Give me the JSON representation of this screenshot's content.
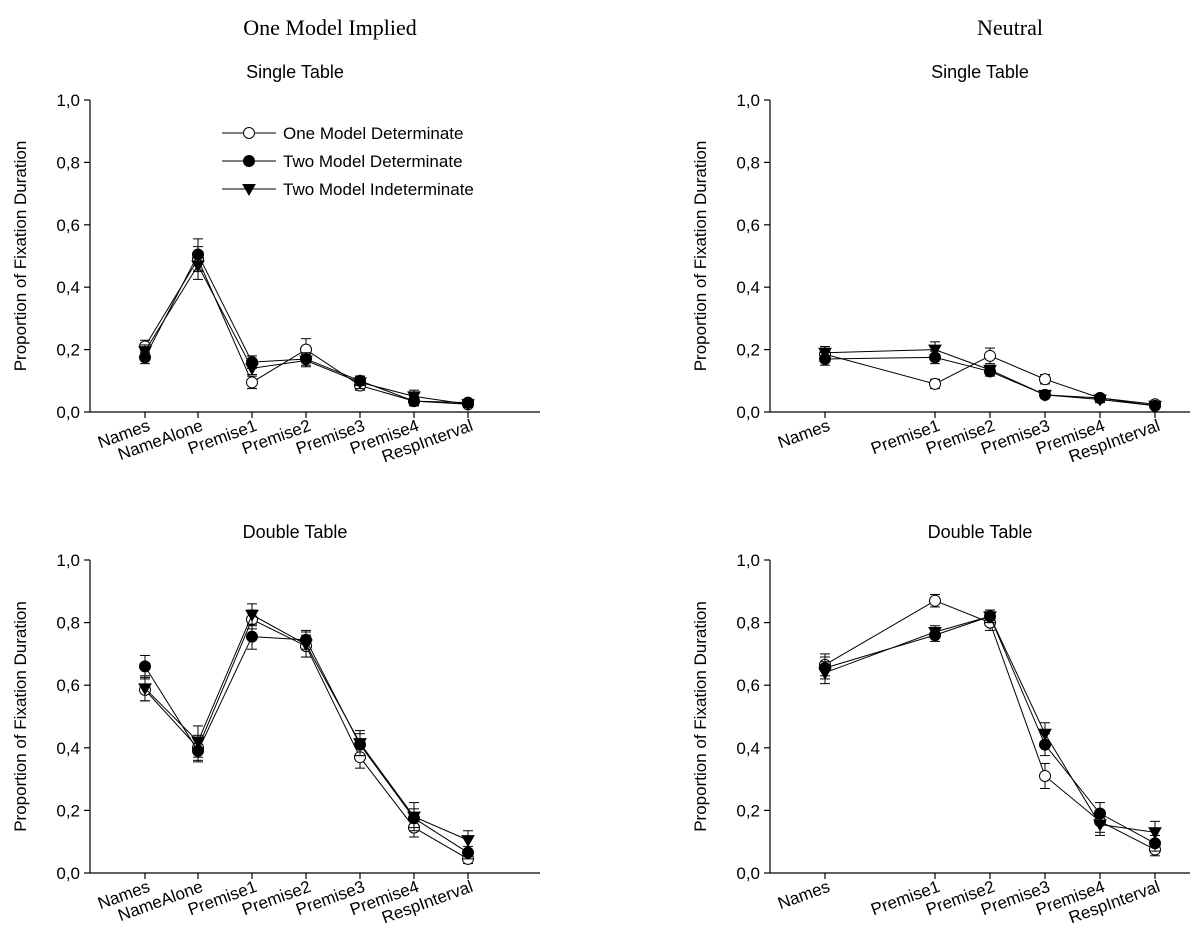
{
  "columns": [
    "One Model Implied",
    "Neutral"
  ],
  "legend": [
    {
      "name": "One Model Determinate",
      "marker": "circle-open"
    },
    {
      "name": "Two Model Determinate",
      "marker": "circle-filled"
    },
    {
      "name": "Two Model Indeterminate",
      "marker": "triangle-down-filled"
    }
  ],
  "chart_data": [
    {
      "type": "line",
      "column": "One Model Implied",
      "title": "Single Table",
      "ylabel": "Proportion of Fixation Duration",
      "ylim": [
        0,
        1
      ],
      "yticks": [
        "0,0",
        "0,2",
        "0,4",
        "0,6",
        "0,8",
        "1,0"
      ],
      "categories": [
        "Names",
        "NameAlone",
        "Premise1",
        "Premise2",
        "Premise3",
        "Premise4",
        "RespInterval"
      ],
      "legend_visible": true,
      "series": [
        {
          "name": "One Model Determinate",
          "values": [
            0.21,
            0.49,
            0.095,
            0.2,
            0.085,
            0.035,
            0.025
          ],
          "errors": [
            0.02,
            0.04,
            0.02,
            0.035,
            0.015,
            0.015,
            0.01
          ]
        },
        {
          "name": "Two Model Determinate",
          "values": [
            0.175,
            0.505,
            0.16,
            0.17,
            0.1,
            0.035,
            0.03
          ],
          "errors": [
            0.02,
            0.05,
            0.02,
            0.02,
            0.015,
            0.015,
            0.01
          ]
        },
        {
          "name": "Two Model Indeterminate",
          "values": [
            0.195,
            0.47,
            0.14,
            0.165,
            0.095,
            0.05,
            0.025
          ],
          "errors": [
            0.02,
            0.045,
            0.02,
            0.02,
            0.02,
            0.02,
            0.01
          ]
        }
      ]
    },
    {
      "type": "line",
      "column": "Neutral",
      "title": "Single Table",
      "ylabel": "Proportion of Fixation Duration",
      "ylim": [
        0,
        1
      ],
      "yticks": [
        "0,0",
        "0,2",
        "0,4",
        "0,6",
        "0,8",
        "1,0"
      ],
      "categories": [
        "Names",
        "Premise1",
        "Premise2",
        "Premise3",
        "Premise4",
        "RespInterval"
      ],
      "legend_visible": false,
      "series": [
        {
          "name": "One Model Determinate",
          "values": [
            0.185,
            0.09,
            0.18,
            0.105,
            0.045,
            0.025
          ],
          "errors": [
            0.02,
            0.015,
            0.025,
            0.015,
            0.01,
            0.01
          ]
        },
        {
          "name": "Two Model Determinate",
          "values": [
            0.17,
            0.175,
            0.13,
            0.055,
            0.045,
            0.02
          ],
          "errors": [
            0.02,
            0.02,
            0.015,
            0.01,
            0.01,
            0.01
          ]
        },
        {
          "name": "Two Model Indeterminate",
          "values": [
            0.19,
            0.2,
            0.135,
            0.055,
            0.04,
            0.02
          ],
          "errors": [
            0.02,
            0.025,
            0.015,
            0.01,
            0.01,
            0.01
          ]
        }
      ]
    },
    {
      "type": "line",
      "column": "One Model Implied",
      "title": "Double Table",
      "ylabel": "Proportion of Fixation Duration",
      "ylim": [
        0,
        1
      ],
      "yticks": [
        "0,0",
        "0,2",
        "0,4",
        "0,6",
        "0,8",
        "1,0"
      ],
      "categories": [
        "Names",
        "NameAlone",
        "Premise1",
        "Premise2",
        "Premise3",
        "Premise4",
        "RespInterval"
      ],
      "legend_visible": false,
      "series": [
        {
          "name": "One Model Determinate",
          "values": [
            0.585,
            0.4,
            0.81,
            0.725,
            0.37,
            0.145,
            0.045
          ],
          "errors": [
            0.035,
            0.04,
            0.03,
            0.035,
            0.035,
            0.03,
            0.015
          ]
        },
        {
          "name": "Two Model Determinate",
          "values": [
            0.66,
            0.39,
            0.755,
            0.745,
            0.41,
            0.175,
            0.065
          ],
          "errors": [
            0.035,
            0.035,
            0.04,
            0.03,
            0.035,
            0.03,
            0.02
          ]
        },
        {
          "name": "Two Model Indeterminate",
          "values": [
            0.59,
            0.42,
            0.825,
            0.73,
            0.415,
            0.18,
            0.105
          ],
          "errors": [
            0.04,
            0.05,
            0.035,
            0.04,
            0.04,
            0.045,
            0.03
          ]
        }
      ]
    },
    {
      "type": "line",
      "column": "Neutral",
      "title": "Double Table",
      "ylabel": "Proportion of Fixation Duration",
      "ylim": [
        0,
        1
      ],
      "yticks": [
        "0,0",
        "0,2",
        "0,4",
        "0,6",
        "0,8",
        "1,0"
      ],
      "categories": [
        "Names",
        "Premise1",
        "Premise2",
        "Premise3",
        "Premise4",
        "RespInterval"
      ],
      "legend_visible": false,
      "series": [
        {
          "name": "One Model Determinate",
          "values": [
            0.665,
            0.87,
            0.8,
            0.31,
            0.165,
            0.075
          ],
          "errors": [
            0.035,
            0.02,
            0.025,
            0.04,
            0.035,
            0.02
          ]
        },
        {
          "name": "Two Model Determinate",
          "values": [
            0.655,
            0.76,
            0.82,
            0.41,
            0.19,
            0.095
          ],
          "errors": [
            0.035,
            0.02,
            0.02,
            0.035,
            0.035,
            0.025
          ]
        },
        {
          "name": "Two Model Indeterminate",
          "values": [
            0.64,
            0.77,
            0.82,
            0.445,
            0.155,
            0.13
          ],
          "errors": [
            0.035,
            0.02,
            0.02,
            0.035,
            0.035,
            0.035
          ]
        }
      ]
    }
  ]
}
